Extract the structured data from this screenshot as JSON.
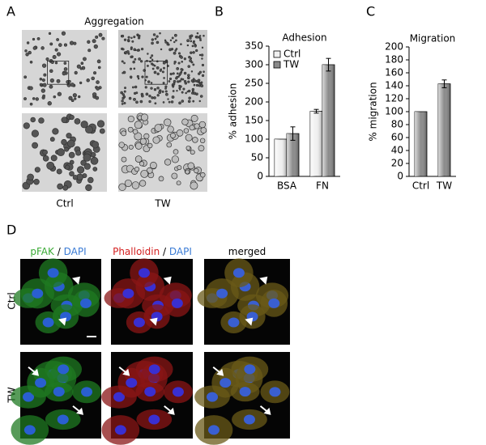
{
  "panels": {
    "a": "A",
    "b": "B",
    "c": "C",
    "d": "D"
  },
  "aggregation": {
    "title": "Aggregation",
    "labels": [
      "Ctrl",
      "TW"
    ]
  },
  "chart_data": [
    {
      "type": "bar",
      "title": "Adhesion",
      "y_label": "% adhesion",
      "categories": [
        "BSA",
        "FN"
      ],
      "series": [
        {
          "name": "Ctrl",
          "color": "#f0f0f0",
          "values": [
            100,
            175
          ],
          "errors": [
            null,
            5
          ]
        },
        {
          "name": "TW",
          "color": "#8a8a8a",
          "values": [
            115,
            300
          ],
          "errors": [
            18,
            17
          ]
        }
      ],
      "ylim": [
        0,
        350
      ],
      "yticks": [
        0,
        50,
        100,
        150,
        200,
        250,
        300,
        350
      ],
      "legend": "top-left"
    },
    {
      "type": "bar",
      "title": "Migration",
      "y_label": "% migration",
      "categories": [
        "Ctrl",
        "TW"
      ],
      "values": [
        100,
        143
      ],
      "errors": [
        null,
        6
      ],
      "color": "#8a8a8a",
      "ylim": [
        0,
        200
      ],
      "yticks": [
        0,
        20,
        40,
        60,
        80,
        100,
        120,
        140,
        160,
        180,
        200
      ]
    }
  ],
  "staining": {
    "columns": [
      [
        "pFAK",
        "/",
        "DAPI"
      ],
      [
        "Phalloidin",
        "/",
        "DAPI"
      ],
      [
        "merged"
      ]
    ],
    "rows": [
      "Ctrl",
      "TW"
    ]
  }
}
